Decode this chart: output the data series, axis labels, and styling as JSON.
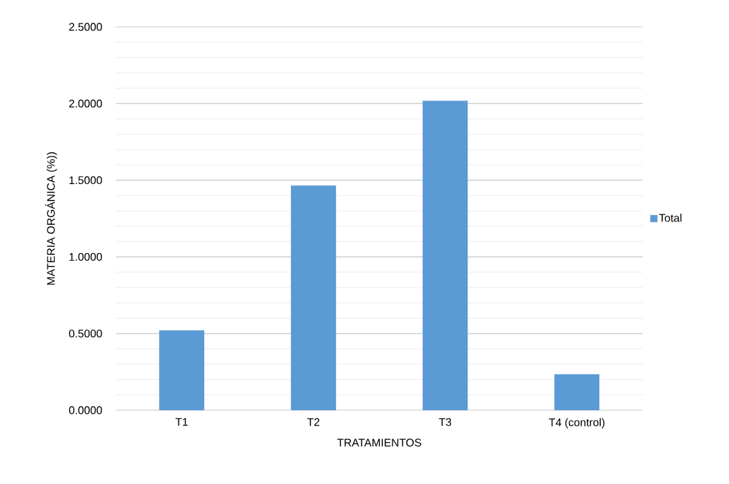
{
  "chart_data": {
    "type": "bar",
    "xlabel": "TRATAMIENTOS",
    "ylabel": "MATERIA ORGÁNICA (%))",
    "categories": [
      "T1",
      "T2",
      "T3",
      "T4 (control)"
    ],
    "series": [
      {
        "name": "Total",
        "color": "#5b9bd5",
        "values": [
          0.52,
          1.465,
          2.018,
          0.234
        ]
      }
    ],
    "ylim": [
      0,
      2.5
    ],
    "yticks": [
      {
        "value": 0,
        "label": "0.0000"
      },
      {
        "value": 0.5,
        "label": "0.5000"
      },
      {
        "value": 1,
        "label": "1.0000"
      },
      {
        "value": 1.5,
        "label": "1.5000"
      },
      {
        "value": 2,
        "label": "2.0000"
      },
      {
        "value": 2.5,
        "label": "2.5000"
      }
    ],
    "grid": true,
    "legend": "right"
  }
}
